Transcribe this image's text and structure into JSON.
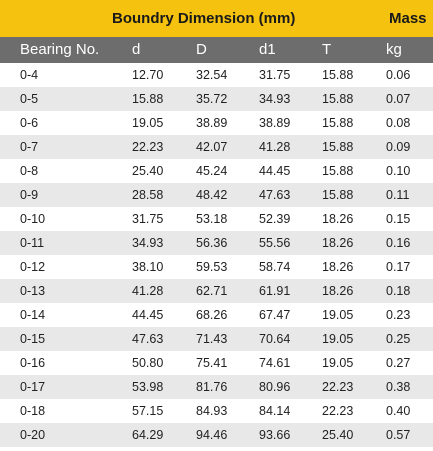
{
  "banner": {
    "dimension_title": "Boundry Dimension (mm)",
    "mass_title": "Mass"
  },
  "header": {
    "columns": [
      "Bearing No.",
      "d",
      "D",
      "d1",
      "T",
      "kg"
    ]
  },
  "rows": [
    [
      "0-4",
      "12.70",
      "32.54",
      "31.75",
      "15.88",
      "0.06"
    ],
    [
      "0-5",
      "15.88",
      "35.72",
      "34.93",
      "15.88",
      "0.07"
    ],
    [
      "0-6",
      "19.05",
      "38.89",
      "38.89",
      "15.88",
      "0.08"
    ],
    [
      "0-7",
      "22.23",
      "42.07",
      "41.28",
      "15.88",
      "0.09"
    ],
    [
      "0-8",
      "25.40",
      "45.24",
      "44.45",
      "15.88",
      "0.10"
    ],
    [
      "0-9",
      "28.58",
      "48.42",
      "47.63",
      "15.88",
      "0.11"
    ],
    [
      "0-10",
      "31.75",
      "53.18",
      "52.39",
      "18.26",
      "0.15"
    ],
    [
      "0-11",
      "34.93",
      "56.36",
      "55.56",
      "18.26",
      "0.16"
    ],
    [
      "0-12",
      "38.10",
      "59.53",
      "58.74",
      "18.26",
      "0.17"
    ],
    [
      "0-13",
      "41.28",
      "62.71",
      "61.91",
      "18.26",
      "0.18"
    ],
    [
      "0-14",
      "44.45",
      "68.26",
      "67.47",
      "19.05",
      "0.23"
    ],
    [
      "0-15",
      "47.63",
      "71.43",
      "70.64",
      "19.05",
      "0.25"
    ],
    [
      "0-16",
      "50.80",
      "75.41",
      "74.61",
      "19.05",
      "0.27"
    ],
    [
      "0-17",
      "53.98",
      "81.76",
      "80.96",
      "22.23",
      "0.38"
    ],
    [
      "0-18",
      "57.15",
      "84.93",
      "84.14",
      "22.23",
      "0.40"
    ],
    [
      "0-20",
      "64.29",
      "94.46",
      "93.66",
      "25.40",
      "0.57"
    ]
  ],
  "colors": {
    "banner_bg": "#f4c20f",
    "header_bg": "#6d6d6d",
    "stripe_bg": "#e8e8e8"
  }
}
